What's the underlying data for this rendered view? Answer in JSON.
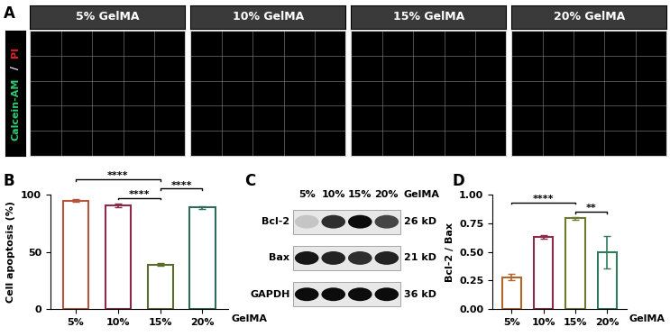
{
  "panel_a": {
    "title": "A",
    "images": [
      "5% GelMA",
      "10% GelMA",
      "15% GelMA",
      "20% GelMA"
    ],
    "stain_label": [
      {
        "text": "Calcein-AM",
        "color": "#2ecc71"
      },
      {
        "text": " / ",
        "color": "#ffffff"
      },
      {
        "text": "PI",
        "color": "#e02020"
      }
    ]
  },
  "chart_data": [
    {
      "type": "bar",
      "title": "B",
      "categories": [
        "5%",
        "10%",
        "15%",
        "20%"
      ],
      "xlabel": "GelMA",
      "ylabel": "Cell apoptosis (%)",
      "values": [
        95,
        91,
        39,
        89
      ],
      "errors": [
        1,
        1.5,
        1,
        1
      ],
      "colors": [
        "#b5563c",
        "#8b2a4a",
        "#5a6b2e",
        "#2e6b5a"
      ],
      "ylim": [
        0,
        100
      ],
      "yticks": [
        0,
        50,
        100
      ],
      "annotations": [
        {
          "from": 1,
          "to": 2,
          "label": "****"
        },
        {
          "from": 2,
          "to": 3,
          "label": "****"
        },
        {
          "from": 0,
          "to": 2,
          "label": "****"
        }
      ]
    },
    {
      "type": "bar",
      "title": "D",
      "categories": [
        "5%",
        "10%",
        "15%",
        "20%"
      ],
      "xlabel": "GelMA",
      "ylabel": "Bcl-2 / Bax",
      "values": [
        0.28,
        0.635,
        0.795,
        0.5
      ],
      "errors": [
        0.03,
        0.015,
        0.01,
        0.14
      ],
      "colors": [
        "#b5652a",
        "#8b2a4a",
        "#6b7a2e",
        "#2e7a5a"
      ],
      "ylim": [
        0,
        1.0
      ],
      "yticks": [
        {
          "value": 0,
          "label": "0.00"
        },
        {
          "value": 0.25,
          "label": "0.25"
        },
        {
          "value": 0.5,
          "label": "0.50"
        },
        {
          "value": 0.75,
          "label": "0.75"
        },
        {
          "value": 1.0,
          "label": "1.00"
        }
      ],
      "annotations": [
        {
          "from": 2,
          "to": 3,
          "label": "**"
        },
        {
          "from": 0,
          "to": 2,
          "label": "****"
        }
      ]
    }
  ],
  "panel_c": {
    "title": "C",
    "lanes": [
      "5%",
      "10%",
      "15%",
      "20%"
    ],
    "lane_label": "GelMA",
    "rows": [
      {
        "name": "Bcl-2",
        "size": "26 kD",
        "intensity": [
          0.15,
          0.8,
          0.95,
          0.7
        ]
      },
      {
        "name": "Bax",
        "size": "21 kD",
        "intensity": [
          0.9,
          0.85,
          0.8,
          0.85
        ]
      },
      {
        "name": "GAPDH",
        "size": "36 kD",
        "intensity": [
          0.95,
          0.95,
          0.95,
          0.95
        ]
      }
    ]
  }
}
